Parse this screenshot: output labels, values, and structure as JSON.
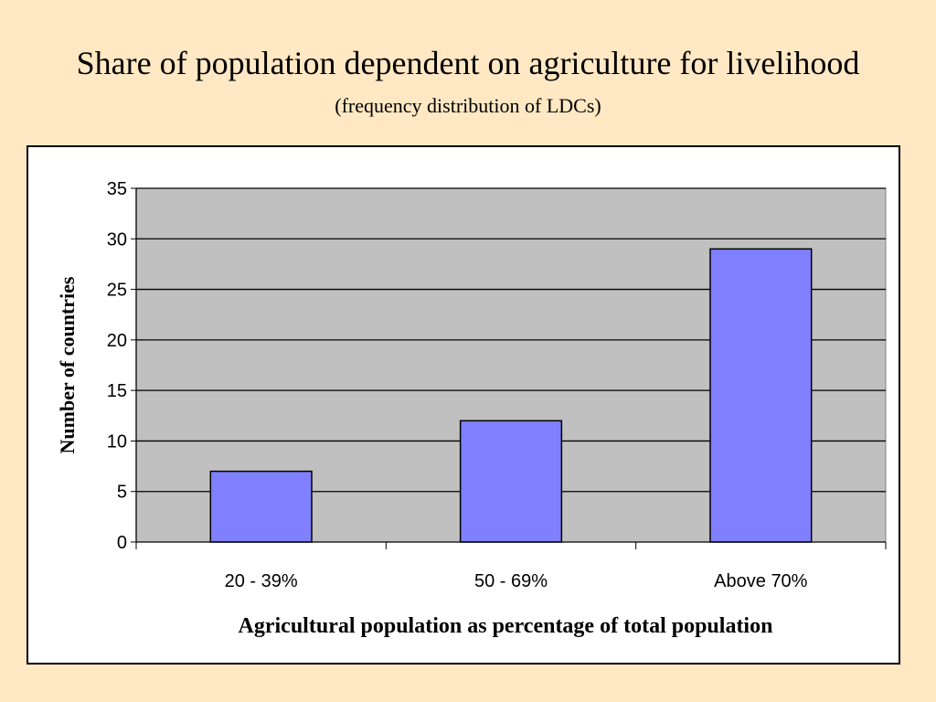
{
  "slide": {
    "title": "Share of population dependent on agriculture for livelihood",
    "subtitle": "(frequency distribution of LDCs)"
  },
  "colors": {
    "background": "#FFE8C3",
    "plot_area": "#C0C0C0",
    "bar_fill": "#8080FF",
    "bar_stroke": "#000000",
    "gridline": "#000000"
  },
  "chart_data": {
    "type": "bar",
    "categories": [
      "20 - 39%",
      "50 - 69%",
      "Above 70%"
    ],
    "values": [
      7,
      12,
      29
    ],
    "title": "",
    "xlabel": "Agricultural population as percentage of total population",
    "ylabel": "Number of countries",
    "ylim": [
      0,
      35
    ],
    "yticks": [
      0,
      5,
      10,
      15,
      20,
      25,
      30,
      35
    ],
    "grid": true,
    "legend": "none"
  }
}
